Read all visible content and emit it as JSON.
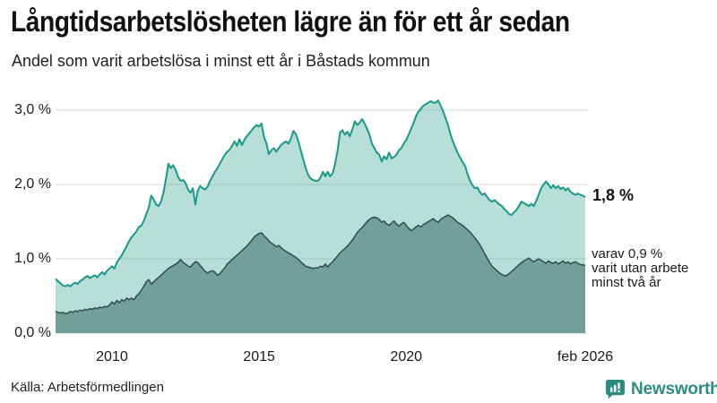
{
  "header": {
    "title": "Långtidsarbetslösheten lägre än för ett år sedan",
    "subtitle": "Andel som varit arbetslösa i minst ett år i Båstads kommun"
  },
  "annotations": {
    "total_end_label": "1,8 %",
    "subset_end_label_line1": "varav 0,9 %",
    "subset_end_label_line2": "varit utan arbete",
    "subset_end_label_line3": "minst två år"
  },
  "footer": {
    "source": "Källa: Arbetsförmedlingen",
    "logo_text": "Newsworthy"
  },
  "colors": {
    "total_line": "#18998b",
    "total_fill": "rgba(53,160,143,0.35)",
    "subset_line": "#33524d",
    "subset_fill": "#71a09a",
    "gridline": "#d9d9d9",
    "logo_teal": "#2e8b84"
  },
  "chart_data": {
    "type": "area",
    "title": "Långtidsarbetslösheten lägre än för ett år sedan",
    "subtitle": "Andel som varit arbetslösa i minst ett år i Båstads kommun",
    "x_unit": "month",
    "x_start": "2008-02",
    "x_end": "2026-02",
    "x_start_decimal": 2008.0833,
    "x_end_decimal": 2026.0833,
    "ylim": [
      0,
      3.2
    ],
    "grid_values": [
      0,
      1,
      2,
      3
    ],
    "yticks": [
      "0,0 %",
      "1,0 %",
      "2,0 %",
      "3,0 %"
    ],
    "xticks": [
      {
        "label": "2010",
        "year": 2010
      },
      {
        "label": "2015",
        "year": 2015
      },
      {
        "label": "2020",
        "year": 2020
      },
      {
        "label": "feb 2026",
        "year": 2026.0833
      }
    ],
    "legend_position": "end-of-line-labels",
    "grid": true,
    "series": [
      {
        "name": "Andel arbetslösa minst ett år (totalt)",
        "end_value_label": "1,8 %",
        "last_value": 1.8,
        "values": [
          0.73,
          0.7,
          0.67,
          0.64,
          0.63,
          0.65,
          0.63,
          0.66,
          0.68,
          0.66,
          0.7,
          0.72,
          0.75,
          0.77,
          0.74,
          0.76,
          0.78,
          0.75,
          0.79,
          0.82,
          0.79,
          0.84,
          0.87,
          0.9,
          0.87,
          0.95,
          1.0,
          1.05,
          1.11,
          1.17,
          1.24,
          1.29,
          1.33,
          1.37,
          1.43,
          1.45,
          1.51,
          1.6,
          1.69,
          1.85,
          1.8,
          1.73,
          1.71,
          1.77,
          1.89,
          2.07,
          2.28,
          2.22,
          2.26,
          2.19,
          2.1,
          2.05,
          2.06,
          2.02,
          1.93,
          1.89,
          1.95,
          1.73,
          1.92,
          1.98,
          1.95,
          1.93,
          1.97,
          2.05,
          2.11,
          2.17,
          2.22,
          2.28,
          2.34,
          2.4,
          2.44,
          2.47,
          2.52,
          2.58,
          2.52,
          2.61,
          2.53,
          2.6,
          2.65,
          2.69,
          2.73,
          2.77,
          2.8,
          2.78,
          2.82,
          2.64,
          2.55,
          2.41,
          2.46,
          2.49,
          2.44,
          2.49,
          2.53,
          2.56,
          2.58,
          2.55,
          2.62,
          2.72,
          2.68,
          2.58,
          2.46,
          2.34,
          2.22,
          2.13,
          2.08,
          2.06,
          2.05,
          2.05,
          2.09,
          2.17,
          2.11,
          2.17,
          2.11,
          2.15,
          2.28,
          2.46,
          2.7,
          2.73,
          2.67,
          2.71,
          2.65,
          2.74,
          2.85,
          2.8,
          2.83,
          2.88,
          2.82,
          2.75,
          2.67,
          2.55,
          2.49,
          2.43,
          2.4,
          2.31,
          2.38,
          2.34,
          2.43,
          2.35,
          2.37,
          2.4,
          2.46,
          2.49,
          2.55,
          2.6,
          2.67,
          2.75,
          2.83,
          2.92,
          2.98,
          3.02,
          3.06,
          3.08,
          3.1,
          3.12,
          3.1,
          3.1,
          3.13,
          3.06,
          2.99,
          2.9,
          2.8,
          2.68,
          2.58,
          2.5,
          2.42,
          2.36,
          2.3,
          2.25,
          2.14,
          2.05,
          1.99,
          1.95,
          1.96,
          1.9,
          1.86,
          1.88,
          1.83,
          1.79,
          1.77,
          1.79,
          1.76,
          1.73,
          1.71,
          1.67,
          1.64,
          1.6,
          1.59,
          1.63,
          1.66,
          1.71,
          1.77,
          1.75,
          1.73,
          1.71,
          1.74,
          1.71,
          1.78,
          1.86,
          1.95,
          2.0,
          2.04,
          2.0,
          1.95,
          1.99,
          1.95,
          1.98,
          1.94,
          1.96,
          1.92,
          1.95,
          1.9,
          1.88,
          1.86,
          1.88,
          1.86,
          1.85,
          1.83
        ]
      },
      {
        "name": "varav utan arbete minst två år",
        "end_value_label": "varav 0,9 % varit utan arbete minst två år",
        "last_value": 0.9,
        "values": [
          0.29,
          0.28,
          0.27,
          0.28,
          0.26,
          0.27,
          0.29,
          0.28,
          0.3,
          0.29,
          0.31,
          0.3,
          0.32,
          0.31,
          0.33,
          0.32,
          0.34,
          0.33,
          0.35,
          0.34,
          0.36,
          0.35,
          0.38,
          0.42,
          0.39,
          0.44,
          0.41,
          0.45,
          0.43,
          0.47,
          0.45,
          0.47,
          0.45,
          0.5,
          0.53,
          0.58,
          0.63,
          0.69,
          0.72,
          0.66,
          0.69,
          0.72,
          0.75,
          0.78,
          0.81,
          0.84,
          0.87,
          0.89,
          0.91,
          0.93,
          0.95,
          0.99,
          0.95,
          0.93,
          0.9,
          0.89,
          0.93,
          0.96,
          0.95,
          0.91,
          0.87,
          0.83,
          0.81,
          0.83,
          0.84,
          0.82,
          0.78,
          0.8,
          0.84,
          0.88,
          0.93,
          0.96,
          0.99,
          1.02,
          1.05,
          1.08,
          1.11,
          1.14,
          1.17,
          1.21,
          1.25,
          1.29,
          1.32,
          1.34,
          1.35,
          1.31,
          1.28,
          1.24,
          1.21,
          1.19,
          1.16,
          1.18,
          1.15,
          1.12,
          1.1,
          1.08,
          1.06,
          1.04,
          1.02,
          0.99,
          0.96,
          0.93,
          0.9,
          0.89,
          0.88,
          0.87,
          0.88,
          0.88,
          0.9,
          0.89,
          0.93,
          0.89,
          0.93,
          0.96,
          1.0,
          1.04,
          1.08,
          1.11,
          1.14,
          1.17,
          1.21,
          1.25,
          1.3,
          1.35,
          1.39,
          1.42,
          1.46,
          1.5,
          1.53,
          1.55,
          1.56,
          1.55,
          1.53,
          1.49,
          1.51,
          1.47,
          1.45,
          1.48,
          1.51,
          1.47,
          1.44,
          1.47,
          1.49,
          1.45,
          1.41,
          1.38,
          1.4,
          1.43,
          1.45,
          1.43,
          1.46,
          1.48,
          1.5,
          1.52,
          1.54,
          1.51,
          1.49,
          1.53,
          1.55,
          1.57,
          1.59,
          1.57,
          1.55,
          1.52,
          1.49,
          1.47,
          1.45,
          1.42,
          1.39,
          1.36,
          1.32,
          1.28,
          1.24,
          1.19,
          1.13,
          1.07,
          1.01,
          0.95,
          0.9,
          0.87,
          0.84,
          0.81,
          0.79,
          0.77,
          0.78,
          0.8,
          0.83,
          0.86,
          0.89,
          0.92,
          0.95,
          0.97,
          0.99,
          1.01,
          0.98,
          0.96,
          0.98,
          1.0,
          0.98,
          0.96,
          0.94,
          0.97,
          0.95,
          0.94,
          0.96,
          0.93,
          0.95,
          0.97,
          0.94,
          0.96,
          0.93,
          0.95,
          0.96,
          0.94,
          0.92,
          0.92,
          0.91
        ]
      }
    ]
  }
}
